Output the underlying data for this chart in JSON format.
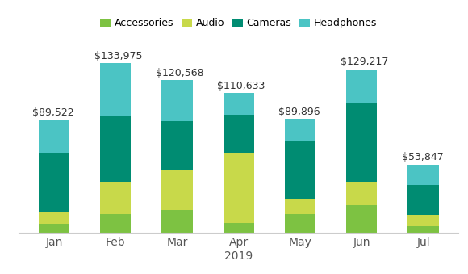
{
  "months": [
    "Jan",
    "Feb",
    "Mar",
    "Apr",
    "May",
    "Jun",
    "Jul"
  ],
  "totals": [
    89522,
    133975,
    120568,
    110633,
    89896,
    129217,
    53847
  ],
  "total_labels": [
    "$89,522",
    "$133,975",
    "$120,568",
    "$110,633",
    "$89,896",
    "$129,217",
    "$53,847"
  ],
  "categories": [
    "Accessories",
    "Audio",
    "Cameras",
    "Headphones"
  ],
  "colors": [
    "#7DC242",
    "#C8D94A",
    "#008C72",
    "#4BC4C4"
  ],
  "data": {
    "Accessories": [
      7000,
      15000,
      18000,
      8000,
      15000,
      22000,
      5000
    ],
    "Audio": [
      10000,
      25000,
      32000,
      55000,
      12000,
      18000,
      9000
    ],
    "Cameras": [
      46000,
      52000,
      38000,
      30000,
      46000,
      62000,
      24000
    ],
    "Headphones": [
      26522,
      41975,
      32568,
      17633,
      16896,
      27217,
      15847
    ]
  },
  "xlabel": "2019",
  "ylim": [
    0,
    145000
  ],
  "background_color": "#ffffff",
  "legend_fontsize": 9,
  "label_fontsize": 9,
  "tick_fontsize": 10,
  "bar_width": 0.5
}
